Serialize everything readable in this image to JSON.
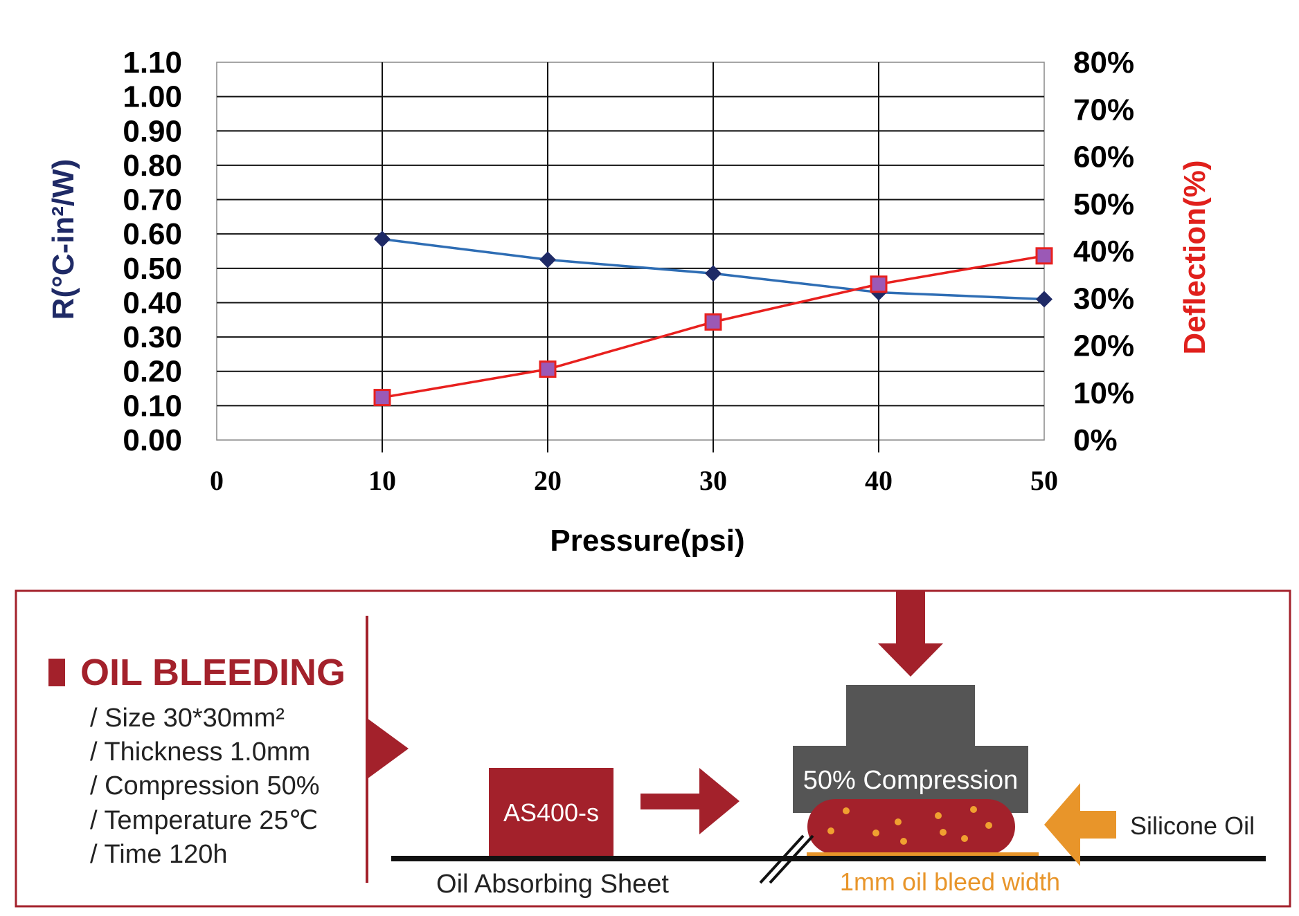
{
  "chart_data": {
    "type": "line",
    "x": [
      10,
      20,
      30,
      40,
      50
    ],
    "xticks": [
      "0",
      "10",
      "20",
      "30",
      "40",
      "50"
    ],
    "xlim": [
      0,
      50
    ],
    "xlabel": "Pressure(psi)",
    "ylabel_left": "R(°C-in²/W)",
    "ylabel_right": "Deflection(%)",
    "ylim_left": [
      0,
      1.1
    ],
    "ylim_right": [
      0,
      80
    ],
    "yticks_left": [
      "0.00",
      "0.10",
      "0.20",
      "0.30",
      "0.40",
      "0.50",
      "0.60",
      "0.70",
      "0.80",
      "0.90",
      "1.00",
      "1.10"
    ],
    "yticks_right": [
      "0%",
      "10%",
      "20%",
      "30%",
      "40%",
      "50%",
      "60%",
      "70%",
      "80%"
    ],
    "grid": true,
    "series": [
      {
        "axis": "left",
        "marker": "diamond",
        "color": "#2e6db4",
        "marker_color": "#1f2a66",
        "values": [
          0.585,
          0.525,
          0.485,
          0.43,
          0.41
        ]
      },
      {
        "axis": "right",
        "marker": "square",
        "color": "#e8201e",
        "marker_color": "#9b59b6",
        "values": [
          9,
          15,
          25,
          33,
          39
        ]
      }
    ]
  },
  "oil_bleeding": {
    "title": "OIL BLEEDING",
    "specs": [
      "/ Size 30*30mm²",
      "/ Thickness 1.0mm",
      "/ Compression 50%",
      "/ Temperature 25℃",
      "/ Time 120h"
    ],
    "sample_label": "AS400-s",
    "compression_label": "50% Compression",
    "silicone_label": "Silicone Oil",
    "sheet_label": "Oil Absorbing Sheet",
    "bleed_label": "1mm oil bleed width",
    "colors": {
      "brand_red": "#a3212b",
      "orange": "#e8952a",
      "gray": "#555555"
    }
  }
}
